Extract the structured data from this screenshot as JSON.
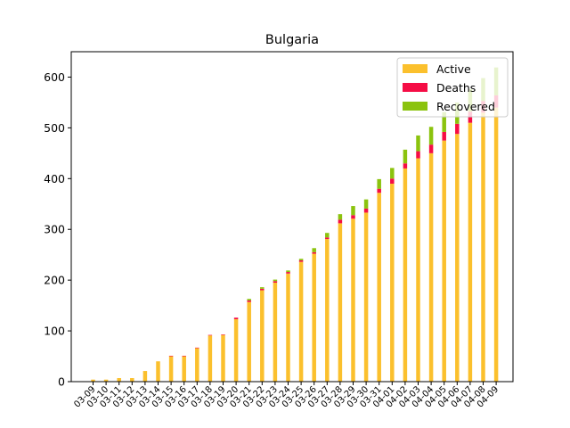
{
  "chart_data": {
    "type": "bar",
    "stacked": true,
    "title": "Bulgaria",
    "xlabel": "",
    "ylabel": "",
    "ylim": [
      0,
      650
    ],
    "yticks": [
      0,
      100,
      200,
      300,
      400,
      500,
      600
    ],
    "grid": false,
    "legend_position": "top-right",
    "categories": [
      "03-09",
      "03-10",
      "03-11",
      "03-12",
      "03-13",
      "03-14",
      "03-15",
      "03-16",
      "03-17",
      "03-18",
      "03-19",
      "03-20",
      "03-21",
      "03-22",
      "03-23",
      "03-24",
      "03-25",
      "03-26",
      "03-27",
      "03-28",
      "03-29",
      "03-30",
      "03-31",
      "04-01",
      "04-02",
      "04-03",
      "04-04",
      "04-05",
      "04-06",
      "04-07",
      "04-08",
      "04-09"
    ],
    "series": [
      {
        "name": "Active",
        "color": "#fbc02d",
        "values": [
          4,
          4,
          7,
          7,
          21,
          40,
          50,
          50,
          66,
          91,
          92,
          123,
          157,
          180,
          195,
          213,
          236,
          252,
          281,
          312,
          321,
          333,
          372,
          390,
          420,
          440,
          450,
          475,
          488,
          510,
          530,
          540
        ]
      },
      {
        "name": "Deaths",
        "color": "#f50d45",
        "values": [
          0,
          0,
          0,
          0,
          0,
          0,
          1,
          1,
          1,
          1,
          1,
          3,
          3,
          3,
          3,
          3,
          3,
          3,
          3,
          7,
          7,
          8,
          8,
          10,
          10,
          14,
          17,
          17,
          20,
          22,
          23,
          24
        ]
      },
      {
        "name": "Recovered",
        "color": "#8bc30e",
        "values": [
          0,
          0,
          0,
          0,
          0,
          0,
          0,
          0,
          0,
          0,
          0,
          0,
          3,
          3,
          3,
          3,
          3,
          8,
          9,
          11,
          18,
          18,
          19,
          21,
          27,
          31,
          35,
          39,
          42,
          44,
          45,
          55
        ]
      }
    ]
  }
}
